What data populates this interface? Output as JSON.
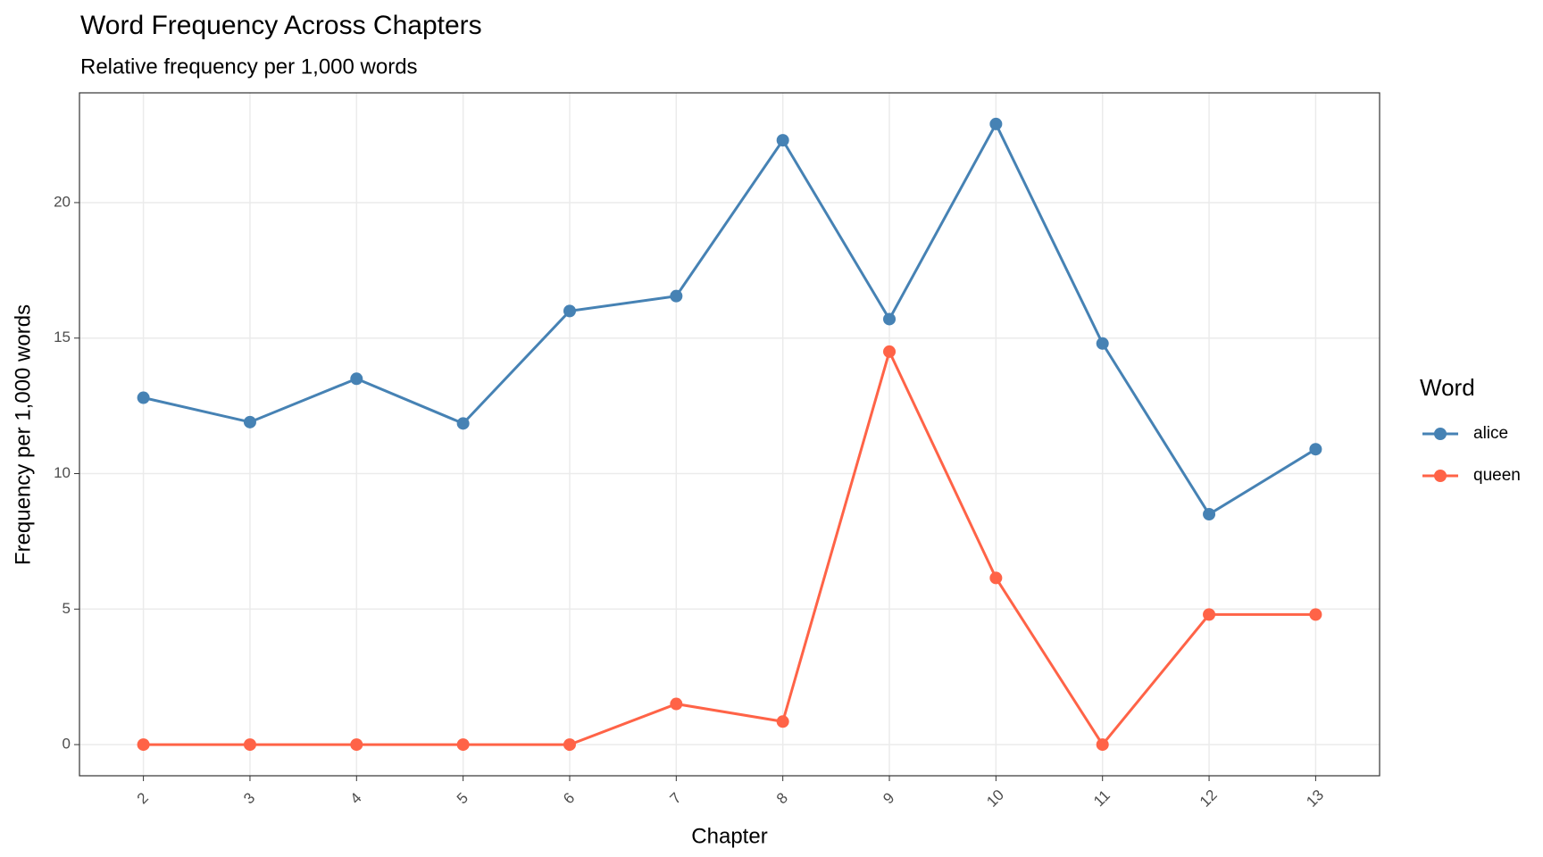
{
  "chart_data": {
    "type": "line",
    "title": "Word Frequency Across Chapters",
    "subtitle": "Relative frequency per 1,000 words",
    "x_label": "Chapter",
    "y_label": "Frequency per 1,000 words",
    "categories": [
      "2",
      "3",
      "4",
      "5",
      "6",
      "7",
      "8",
      "9",
      "10",
      "11",
      "12",
      "13"
    ],
    "series": [
      {
        "name": "alice",
        "color": "#4682b4",
        "values": [
          12.8,
          11.9,
          13.5,
          11.85,
          16.0,
          16.55,
          22.3,
          15.7,
          22.9,
          14.8,
          8.5,
          10.9
        ]
      },
      {
        "name": "queen",
        "color": "#ff6347",
        "values": [
          0,
          0,
          0,
          0,
          0,
          1.5,
          0.85,
          14.5,
          6.15,
          0,
          4.8,
          4.8
        ]
      }
    ],
    "ylim": [
      -1.15,
      24.05
    ],
    "yticks": [
      0,
      5,
      10,
      15,
      20
    ],
    "grid": true,
    "legend_title": "Word",
    "legend": "right"
  }
}
